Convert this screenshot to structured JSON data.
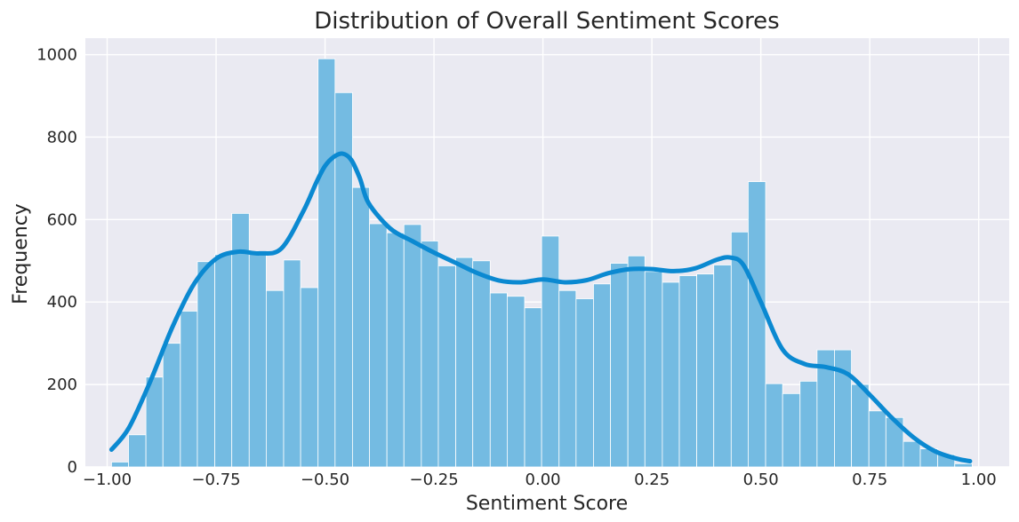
{
  "chart_data": {
    "type": "bar",
    "title": "Distribution of Overall Sentiment Scores",
    "xlabel": "Sentiment Score",
    "ylabel": "Frequency",
    "xlim": [
      -1.05,
      1.07
    ],
    "ylim": [
      0,
      1040
    ],
    "grid": true,
    "x_ticks": [
      {
        "value": -1.0,
        "label": "−1.00"
      },
      {
        "value": -0.75,
        "label": "−0.75"
      },
      {
        "value": -0.5,
        "label": "−0.50"
      },
      {
        "value": -0.25,
        "label": "−0.25"
      },
      {
        "value": 0.0,
        "label": "0.00"
      },
      {
        "value": 0.25,
        "label": "0.25"
      },
      {
        "value": 0.5,
        "label": "0.50"
      },
      {
        "value": 0.75,
        "label": "0.75"
      },
      {
        "value": 1.0,
        "label": "1.00"
      }
    ],
    "y_ticks": [
      {
        "value": 0,
        "label": "0"
      },
      {
        "value": 200,
        "label": "200"
      },
      {
        "value": 400,
        "label": "400"
      },
      {
        "value": 600,
        "label": "600"
      },
      {
        "value": 800,
        "label": "800"
      },
      {
        "value": 1000,
        "label": "1000"
      }
    ],
    "bins": [
      {
        "x0": -0.99,
        "x1": -0.951,
        "count": 12
      },
      {
        "x0": -0.951,
        "x1": -0.911,
        "count": 78
      },
      {
        "x0": -0.911,
        "x1": -0.872,
        "count": 218
      },
      {
        "x0": -0.872,
        "x1": -0.832,
        "count": 300
      },
      {
        "x0": -0.832,
        "x1": -0.793,
        "count": 378
      },
      {
        "x0": -0.793,
        "x1": -0.753,
        "count": 498
      },
      {
        "x0": -0.753,
        "x1": -0.714,
        "count": 515
      },
      {
        "x0": -0.714,
        "x1": -0.674,
        "count": 615
      },
      {
        "x0": -0.674,
        "x1": -0.635,
        "count": 518
      },
      {
        "x0": -0.635,
        "x1": -0.595,
        "count": 428
      },
      {
        "x0": -0.595,
        "x1": -0.556,
        "count": 502
      },
      {
        "x0": -0.556,
        "x1": -0.516,
        "count": 435
      },
      {
        "x0": -0.516,
        "x1": -0.477,
        "count": 990
      },
      {
        "x0": -0.477,
        "x1": -0.437,
        "count": 908
      },
      {
        "x0": -0.437,
        "x1": -0.398,
        "count": 678
      },
      {
        "x0": -0.398,
        "x1": -0.358,
        "count": 590
      },
      {
        "x0": -0.358,
        "x1": -0.319,
        "count": 568
      },
      {
        "x0": -0.319,
        "x1": -0.279,
        "count": 588
      },
      {
        "x0": -0.279,
        "x1": -0.24,
        "count": 548
      },
      {
        "x0": -0.24,
        "x1": -0.2,
        "count": 488
      },
      {
        "x0": -0.2,
        "x1": -0.161,
        "count": 508
      },
      {
        "x0": -0.161,
        "x1": -0.121,
        "count": 500
      },
      {
        "x0": -0.121,
        "x1": -0.082,
        "count": 422
      },
      {
        "x0": -0.082,
        "x1": -0.042,
        "count": 414
      },
      {
        "x0": -0.042,
        "x1": -0.003,
        "count": 386
      },
      {
        "x0": -0.003,
        "x1": 0.037,
        "count": 560
      },
      {
        "x0": 0.037,
        "x1": 0.076,
        "count": 428
      },
      {
        "x0": 0.076,
        "x1": 0.116,
        "count": 408
      },
      {
        "x0": 0.116,
        "x1": 0.155,
        "count": 444
      },
      {
        "x0": 0.155,
        "x1": 0.195,
        "count": 494
      },
      {
        "x0": 0.195,
        "x1": 0.234,
        "count": 512
      },
      {
        "x0": 0.234,
        "x1": 0.274,
        "count": 474
      },
      {
        "x0": 0.274,
        "x1": 0.313,
        "count": 448
      },
      {
        "x0": 0.313,
        "x1": 0.353,
        "count": 464
      },
      {
        "x0": 0.353,
        "x1": 0.392,
        "count": 468
      },
      {
        "x0": 0.392,
        "x1": 0.432,
        "count": 490
      },
      {
        "x0": 0.432,
        "x1": 0.471,
        "count": 570
      },
      {
        "x0": 0.471,
        "x1": 0.511,
        "count": 692
      },
      {
        "x0": 0.511,
        "x1": 0.55,
        "count": 202
      },
      {
        "x0": 0.55,
        "x1": 0.59,
        "count": 178
      },
      {
        "x0": 0.59,
        "x1": 0.629,
        "count": 208
      },
      {
        "x0": 0.629,
        "x1": 0.669,
        "count": 284
      },
      {
        "x0": 0.669,
        "x1": 0.708,
        "count": 284
      },
      {
        "x0": 0.708,
        "x1": 0.748,
        "count": 200
      },
      {
        "x0": 0.748,
        "x1": 0.787,
        "count": 136
      },
      {
        "x0": 0.787,
        "x1": 0.827,
        "count": 120
      },
      {
        "x0": 0.827,
        "x1": 0.866,
        "count": 62
      },
      {
        "x0": 0.866,
        "x1": 0.906,
        "count": 44
      },
      {
        "x0": 0.906,
        "x1": 0.945,
        "count": 30
      },
      {
        "x0": 0.945,
        "x1": 0.985,
        "count": 8
      }
    ],
    "kde": {
      "x": [
        -0.99,
        -0.95,
        -0.9,
        -0.85,
        -0.8,
        -0.75,
        -0.7,
        -0.65,
        -0.6,
        -0.55,
        -0.52,
        -0.5,
        -0.48,
        -0.46,
        -0.44,
        -0.42,
        -0.4,
        -0.35,
        -0.3,
        -0.25,
        -0.2,
        -0.15,
        -0.1,
        -0.05,
        0.0,
        0.05,
        0.1,
        0.15,
        0.2,
        0.25,
        0.3,
        0.35,
        0.4,
        0.43,
        0.46,
        0.5,
        0.55,
        0.6,
        0.65,
        0.7,
        0.75,
        0.8,
        0.85,
        0.9,
        0.95,
        0.98
      ],
      "y": [
        42,
        95,
        210,
        340,
        445,
        505,
        522,
        518,
        530,
        620,
        690,
        730,
        752,
        760,
        745,
        700,
        640,
        578,
        548,
        520,
        495,
        470,
        452,
        448,
        455,
        448,
        453,
        470,
        480,
        480,
        475,
        482,
        503,
        508,
        490,
        400,
        285,
        250,
        242,
        225,
        175,
        120,
        72,
        38,
        20,
        14
      ]
    },
    "colors": {
      "bar_fill": "#74bbe2",
      "bar_edge": "#ffffff",
      "kde_line": "#0b89d1",
      "plot_bg": "#eaeaf2",
      "grid": "#ffffff",
      "text": "#262626"
    }
  }
}
